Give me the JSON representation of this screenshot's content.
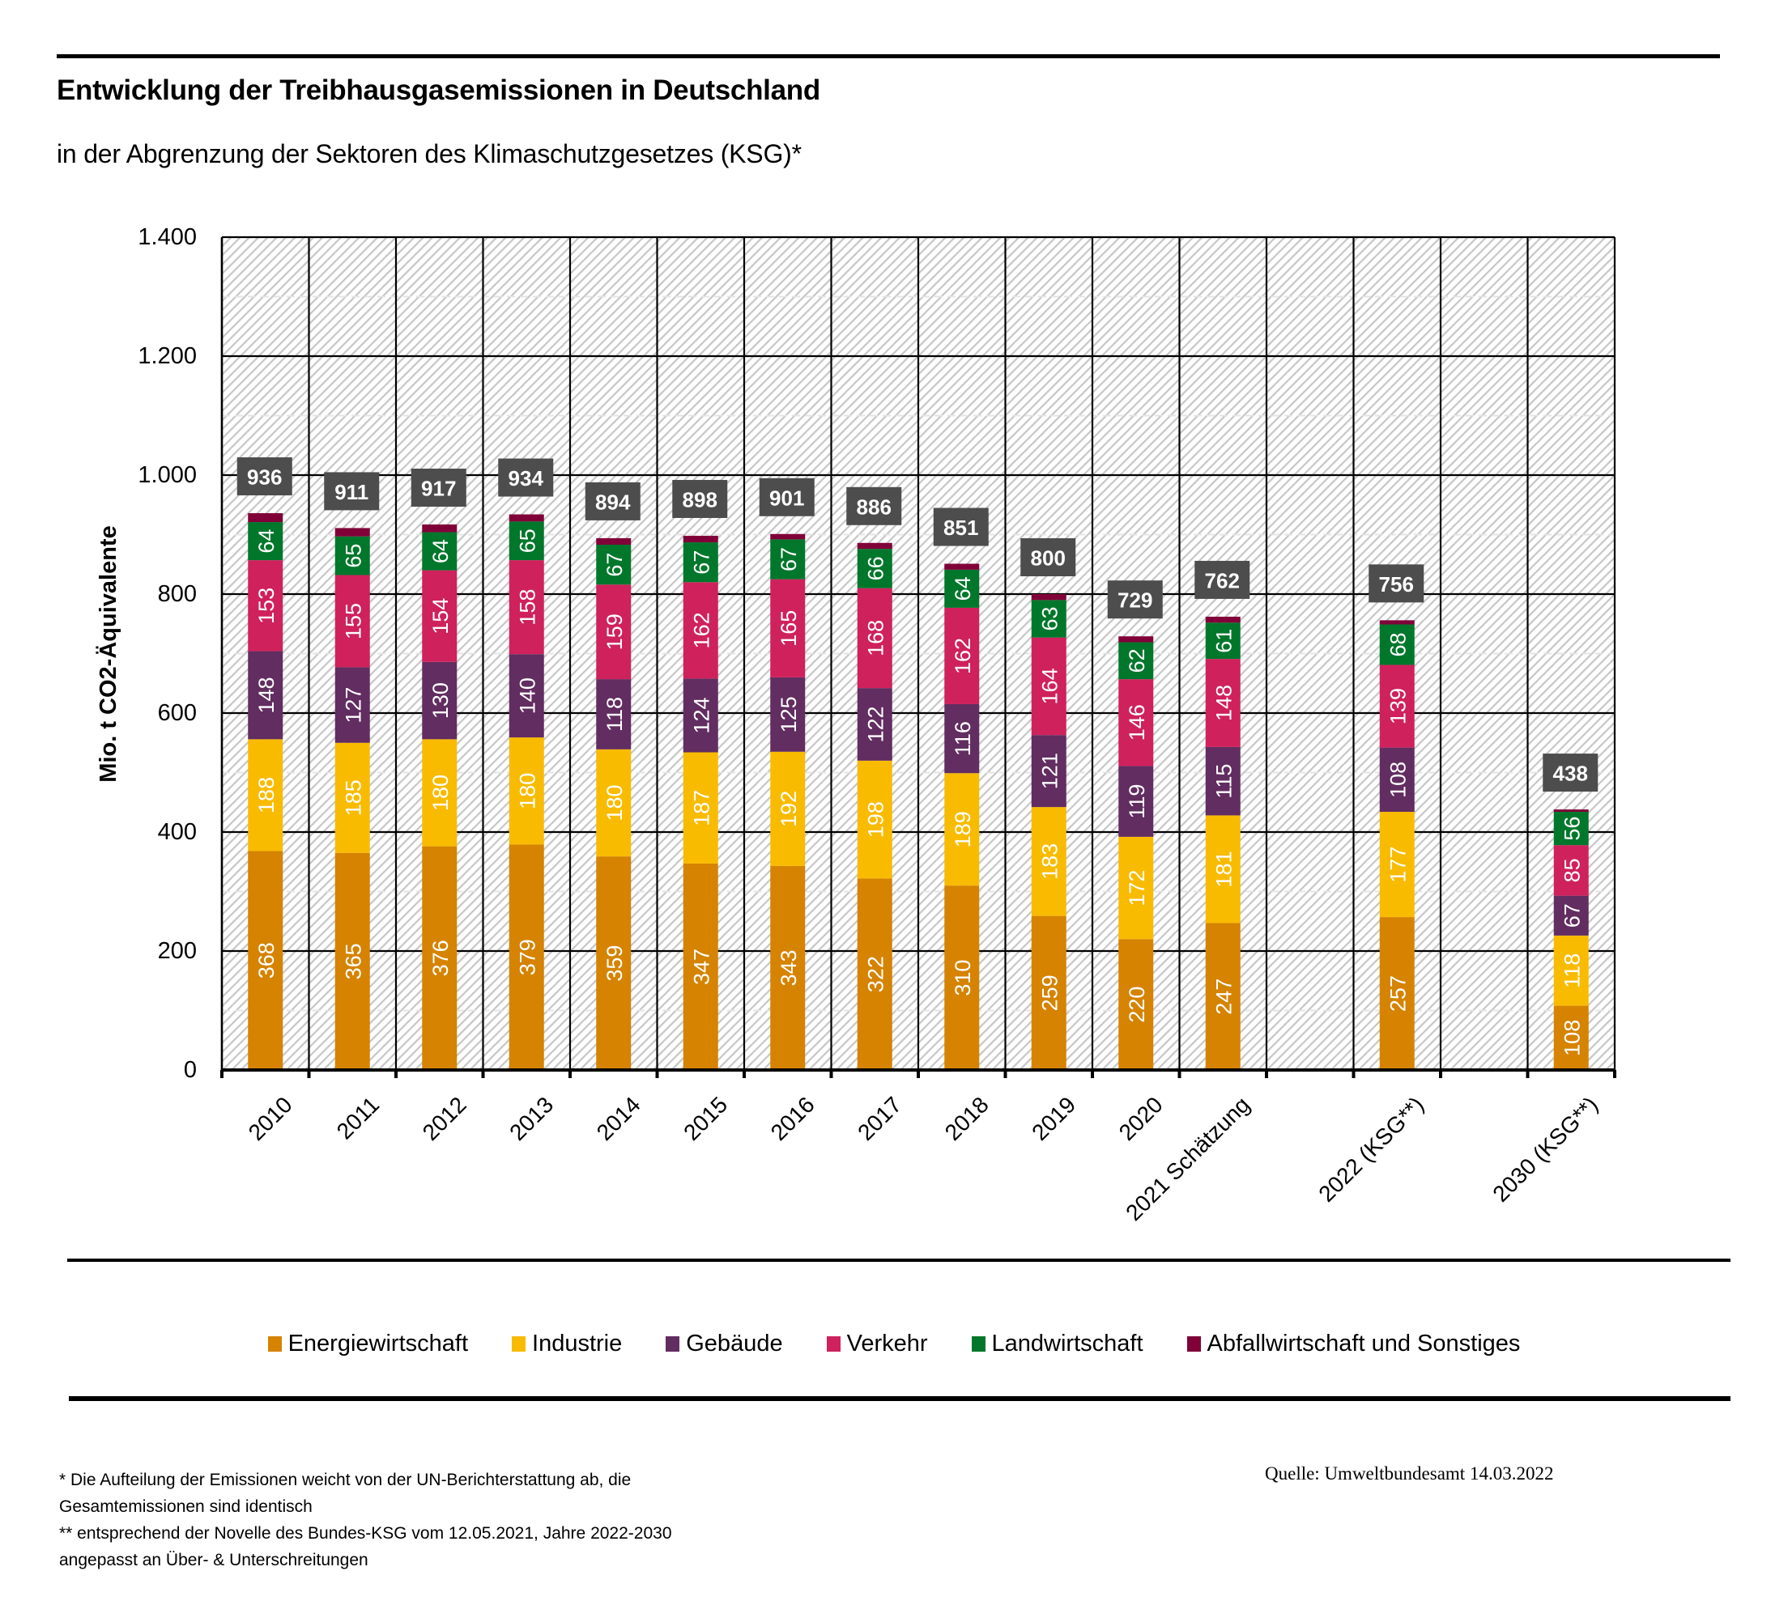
{
  "header": {
    "title": "Entwicklung der Treibhausgasemissionen in Deutschland",
    "subtitle": "in der Abgrenzung der Sektoren des Klimaschutzgesetzes (KSG)*"
  },
  "chart_data": {
    "type": "bar",
    "stacked": true,
    "title": "Entwicklung der Treibhausgasemissionen in Deutschland",
    "subtitle": "in der Abgrenzung der Sektoren des Klimaschutzgesetzes (KSG)*",
    "xlabel": "",
    "ylabel": "Mio. t CO2-Äquivalente",
    "ylim": [
      0,
      1400
    ],
    "yticks": [
      0,
      200,
      400,
      600,
      800,
      1000,
      1200,
      1400
    ],
    "ytick_labels": [
      "0",
      "200",
      "400",
      "600",
      "800",
      "1.000",
      "1.200",
      "1.400"
    ],
    "grid": true,
    "legend_position": "bottom",
    "categories": [
      "2010",
      "2011",
      "2012",
      "2013",
      "2014",
      "2015",
      "2016",
      "2017",
      "2018",
      "2019",
      "2020",
      "2021 Schätzung",
      "",
      "2022 (KSG**)",
      "",
      "2030 (KSG**)"
    ],
    "series": [
      {
        "name": "Energiewirtschaft",
        "color": "#d58300",
        "values": [
          368,
          365,
          376,
          379,
          359,
          347,
          343,
          322,
          310,
          259,
          220,
          247,
          null,
          257,
          null,
          108
        ]
      },
      {
        "name": "Industrie",
        "color": "#f9bb00",
        "values": [
          188,
          185,
          180,
          180,
          180,
          187,
          192,
          198,
          189,
          183,
          172,
          181,
          null,
          177,
          null,
          118
        ]
      },
      {
        "name": "Gebäude",
        "color": "#622d60",
        "values": [
          148,
          127,
          130,
          140,
          118,
          124,
          125,
          122,
          116,
          121,
          119,
          115,
          null,
          108,
          null,
          67
        ]
      },
      {
        "name": "Verkehr",
        "color": "#cf215c",
        "values": [
          153,
          155,
          154,
          158,
          159,
          162,
          165,
          168,
          162,
          164,
          146,
          148,
          null,
          139,
          null,
          85
        ]
      },
      {
        "name": "Landwirtschaft",
        "color": "#00772b",
        "values": [
          64,
          65,
          64,
          65,
          67,
          67,
          67,
          66,
          64,
          63,
          62,
          61,
          null,
          68,
          null,
          56
        ]
      },
      {
        "name": "Abfallwirtschaft und Sonstiges",
        "color": "#800038",
        "values": [
          15,
          14,
          13,
          12,
          11,
          11,
          9,
          10,
          10,
          10,
          10,
          10,
          null,
          7,
          null,
          4
        ],
        "labels_shown": false
      }
    ],
    "totals": [
      936,
      911,
      917,
      934,
      894,
      898,
      901,
      886,
      851,
      800,
      729,
      762,
      null,
      756,
      null,
      438
    ]
  },
  "legend": [
    {
      "label": "Energiewirtschaft",
      "color": "#d58300"
    },
    {
      "label": "Industrie",
      "color": "#f9bb00"
    },
    {
      "label": "Gebäude",
      "color": "#622d60"
    },
    {
      "label": "Verkehr",
      "color": "#cf215c"
    },
    {
      "label": "Landwirtschaft",
      "color": "#00772b"
    },
    {
      "label": "Abfallwirtschaft und Sonstiges",
      "color": "#800038"
    }
  ],
  "footnotes": [
    "* Die Aufteilung der Emissionen weicht von der UN-Berichterstattung ab, die",
    "Gesamtemissionen sind identisch",
    "** entsprechend der Novelle des Bundes-KSG vom 12.05.2021, Jahre 2022-2030",
    "angepasst an Über- & Unterschreitungen"
  ],
  "source": "Quelle: Umweltbundesamt  14.03.2022",
  "colors": {
    "total_label_bg": "#4d4d4d",
    "hatch": "#c6c6c6",
    "grid": "#000000"
  }
}
